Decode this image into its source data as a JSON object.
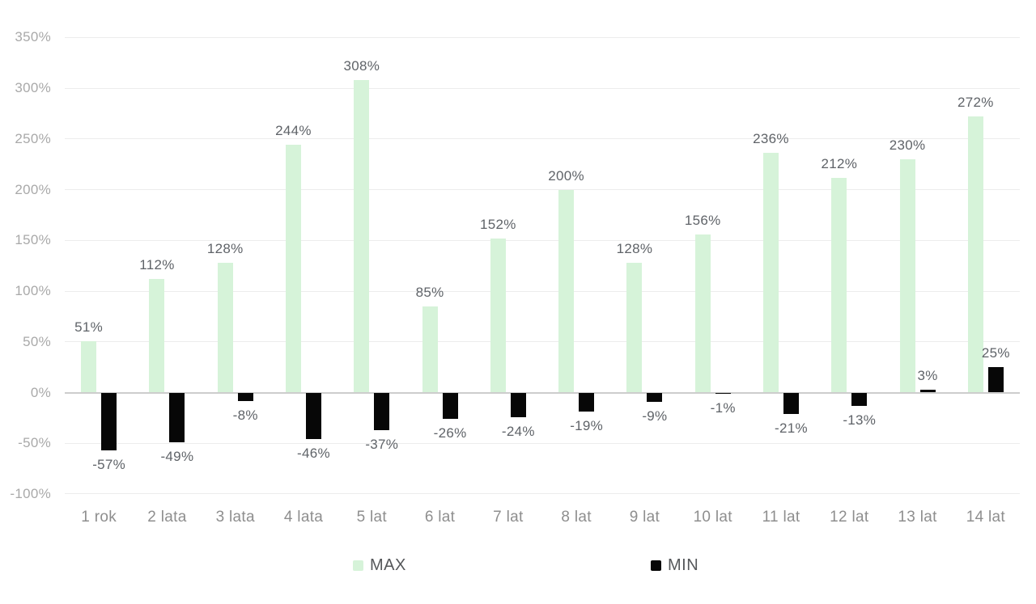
{
  "chart_data": {
    "type": "bar",
    "title": "",
    "categories": [
      "1 rok",
      "2 lata",
      "3 lata",
      "4 lata",
      "5 lat",
      "6 lat",
      "7 lat",
      "8 lat",
      "9 lat",
      "10 lat",
      "11 lat",
      "12 lat",
      "13 lat",
      "14 lat"
    ],
    "series": [
      {
        "name": "MAX",
        "color": "#d6f3d9",
        "values": [
          51,
          112,
          128,
          244,
          308,
          85,
          152,
          200,
          128,
          156,
          236,
          212,
          230,
          272
        ]
      },
      {
        "name": "MIN",
        "color": "#070707",
        "values": [
          -57,
          -49,
          -8,
          -46,
          -37,
          -26,
          -24,
          -19,
          -9,
          -1,
          -21,
          -13,
          3,
          25
        ]
      }
    ],
    "value_suffix": "%",
    "data_labels": {
      "MAX": [
        "51%",
        "112%",
        "128%",
        "244%",
        "308%",
        "85%",
        "152%",
        "200%",
        "128%",
        "156%",
        "236%",
        "212%",
        "230%",
        "272%"
      ],
      "MIN": [
        "-57%",
        "-49%",
        "-8%",
        "-46%",
        "-37%",
        "-26%",
        "-24%",
        "-19%",
        "-9%",
        "-1%",
        "-21%",
        "-13%",
        "3%",
        "25%"
      ]
    },
    "y_axis": {
      "min": -100,
      "max": 350,
      "step": 50,
      "tick_labels": [
        "350%",
        "300%",
        "250%",
        "200%",
        "150%",
        "100%",
        "50%",
        "0%",
        "-50%",
        "-100%"
      ]
    },
    "grid": true,
    "legend_position": "bottom"
  },
  "legend": {
    "max_label": "MAX",
    "min_label": "MIN"
  },
  "colors": {
    "max_bar": "#d6f3d9",
    "min_bar": "#070707",
    "grid": "#ececec",
    "zero_line": "#cdcdcd",
    "axis_text": "#a9a9a9",
    "category_text": "#8e8e8e",
    "data_label_text": "#5f6368",
    "legend_text": "#55575a",
    "background": "#ffffff"
  }
}
